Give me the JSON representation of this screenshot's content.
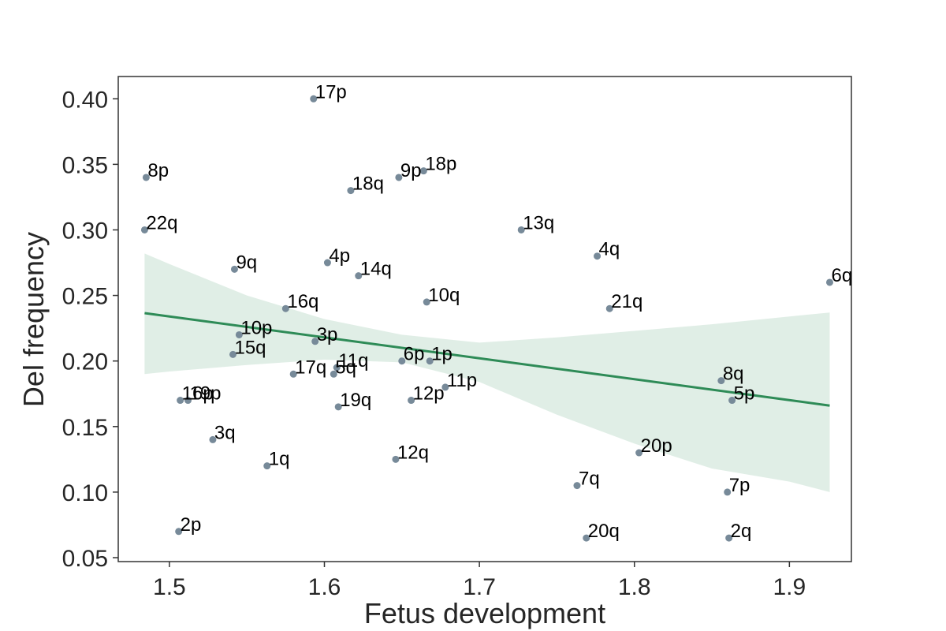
{
  "chart_data": {
    "type": "scatter",
    "xlabel": "Fetus development",
    "ylabel": "Del frequency",
    "xlim": [
      1.467,
      1.94
    ],
    "ylim": [
      0.047,
      0.417
    ],
    "x_ticks": [
      1.5,
      1.6,
      1.7,
      1.8,
      1.9
    ],
    "y_ticks": [
      0.05,
      0.1,
      0.15,
      0.2,
      0.25,
      0.3,
      0.35,
      0.4
    ],
    "x_tick_labels": [
      "1.5",
      "1.6",
      "1.7",
      "1.8",
      "1.9"
    ],
    "y_tick_labels": [
      "0.05",
      "0.10",
      "0.15",
      "0.20",
      "0.25",
      "0.30",
      "0.35",
      "0.40"
    ],
    "grid": false,
    "points": [
      {
        "label": "17p",
        "x": 1.593,
        "y": 0.4
      },
      {
        "label": "8p",
        "x": 1.485,
        "y": 0.34
      },
      {
        "label": "9p",
        "x": 1.648,
        "y": 0.34
      },
      {
        "label": "18p",
        "x": 1.664,
        "y": 0.345
      },
      {
        "label": "18q",
        "x": 1.617,
        "y": 0.33
      },
      {
        "label": "22q",
        "x": 1.484,
        "y": 0.3
      },
      {
        "label": "13q",
        "x": 1.727,
        "y": 0.3
      },
      {
        "label": "4q",
        "x": 1.776,
        "y": 0.28
      },
      {
        "label": "9q",
        "x": 1.542,
        "y": 0.27
      },
      {
        "label": "4p",
        "x": 1.602,
        "y": 0.275
      },
      {
        "label": "14q",
        "x": 1.622,
        "y": 0.265
      },
      {
        "label": "6q",
        "x": 1.926,
        "y": 0.26
      },
      {
        "label": "10q",
        "x": 1.666,
        "y": 0.245
      },
      {
        "label": "16q",
        "x": 1.575,
        "y": 0.24
      },
      {
        "label": "21q",
        "x": 1.784,
        "y": 0.24
      },
      {
        "label": "10p",
        "x": 1.545,
        "y": 0.22
      },
      {
        "label": "3p",
        "x": 1.594,
        "y": 0.215
      },
      {
        "label": "15q",
        "x": 1.541,
        "y": 0.205
      },
      {
        "label": "6p",
        "x": 1.65,
        "y": 0.2
      },
      {
        "label": "1p",
        "x": 1.668,
        "y": 0.2
      },
      {
        "label": "11q",
        "x": 1.608,
        "y": 0.195
      },
      {
        "label": "5q",
        "x": 1.606,
        "y": 0.19
      },
      {
        "label": "17q",
        "x": 1.58,
        "y": 0.19
      },
      {
        "label": "8q",
        "x": 1.856,
        "y": 0.185
      },
      {
        "label": "11p",
        "x": 1.678,
        "y": 0.18
      },
      {
        "label": "16p",
        "x": 1.507,
        "y": 0.17
      },
      {
        "label": "19p",
        "x": 1.512,
        "y": 0.17
      },
      {
        "label": "12p",
        "x": 1.656,
        "y": 0.17
      },
      {
        "label": "5p",
        "x": 1.863,
        "y": 0.17
      },
      {
        "label": "19q",
        "x": 1.609,
        "y": 0.165
      },
      {
        "label": "3q",
        "x": 1.528,
        "y": 0.14
      },
      {
        "label": "20p",
        "x": 1.803,
        "y": 0.13
      },
      {
        "label": "12q",
        "x": 1.646,
        "y": 0.125
      },
      {
        "label": "1q",
        "x": 1.563,
        "y": 0.12
      },
      {
        "label": "7q",
        "x": 1.763,
        "y": 0.105
      },
      {
        "label": "7p",
        "x": 1.86,
        "y": 0.1
      },
      {
        "label": "2p",
        "x": 1.506,
        "y": 0.07
      },
      {
        "label": "20q",
        "x": 1.769,
        "y": 0.065
      },
      {
        "label": "2q",
        "x": 1.861,
        "y": 0.065
      }
    ],
    "regression": {
      "x": [
        1.484,
        1.926
      ],
      "y": [
        0.2365,
        0.166
      ]
    },
    "confidence_band": {
      "x": [
        1.484,
        1.5,
        1.55,
        1.6,
        1.65,
        1.7,
        1.75,
        1.8,
        1.85,
        1.9,
        1.926
      ],
      "upper": [
        0.282,
        0.274,
        0.25,
        0.232,
        0.22,
        0.214,
        0.218,
        0.223,
        0.228,
        0.234,
        0.237
      ],
      "lower": [
        0.19,
        0.192,
        0.197,
        0.201,
        0.199,
        0.184,
        0.159,
        0.137,
        0.118,
        0.108,
        0.1
      ]
    },
    "colors": {
      "points": "#778a99",
      "regression_line": "#2e8b57",
      "confidence_band": "#2e8b57",
      "axes": "#333333",
      "text": "#262626"
    }
  }
}
